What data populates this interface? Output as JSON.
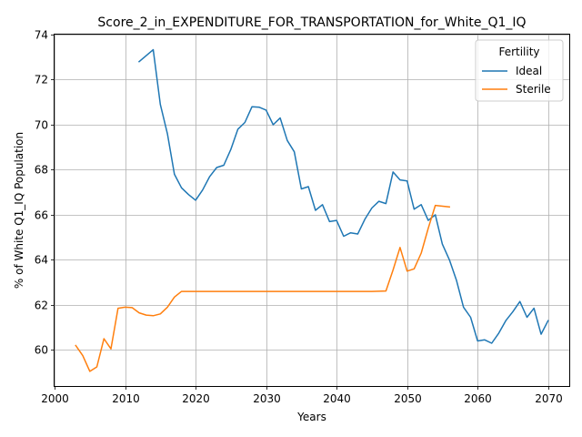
{
  "chart_data": {
    "type": "line",
    "title": "Score_2_in_EXPENDITURE_FOR_TRANSPORTATION_for_White_Q1_IQ",
    "xlabel": "Years",
    "ylabel": "% of White Q1_IQ Population",
    "xlim": [
      2000,
      2073
    ],
    "ylim": [
      58.4,
      74.0
    ],
    "xticks": [
      2000,
      2010,
      2020,
      2030,
      2040,
      2050,
      2060,
      2070
    ],
    "yticks": [
      60,
      62,
      64,
      66,
      68,
      70,
      72,
      74
    ],
    "grid": true,
    "legend": {
      "title": "Fertility",
      "position": "top-right"
    },
    "series": [
      {
        "name": "Ideal",
        "color": "#1f77b4",
        "x": [
          2012,
          2014,
          2015,
          2016,
          2017,
          2018,
          2019,
          2020,
          2021,
          2022,
          2023,
          2024,
          2025,
          2026,
          2027,
          2028,
          2029,
          2030,
          2031,
          2032,
          2033,
          2034,
          2035,
          2036,
          2037,
          2038,
          2039,
          2040,
          2041,
          2042,
          2043,
          2044,
          2045,
          2046,
          2047,
          2048,
          2049,
          2050,
          2051,
          2052,
          2053,
          2054,
          2055,
          2056,
          2057,
          2058,
          2059,
          2060,
          2061,
          2062,
          2063,
          2064,
          2065,
          2066,
          2067,
          2068,
          2069,
          2070
        ],
        "y": [
          72.8,
          73.33,
          70.9,
          69.6,
          67.8,
          67.2,
          66.9,
          66.65,
          67.1,
          67.7,
          68.1,
          68.2,
          68.9,
          69.8,
          70.1,
          70.8,
          70.78,
          70.65,
          70.0,
          70.3,
          69.3,
          68.8,
          67.15,
          67.25,
          66.2,
          66.45,
          65.7,
          65.75,
          65.05,
          65.2,
          65.15,
          65.8,
          66.3,
          66.6,
          66.5,
          67.9,
          67.55,
          67.5,
          66.25,
          66.45,
          65.75,
          66.0,
          64.7,
          64.0,
          63.1,
          61.9,
          61.45,
          60.4,
          60.45,
          60.3,
          60.75,
          61.3,
          61.7,
          62.15,
          61.45,
          61.85,
          60.7,
          61.3
        ]
      },
      {
        "name": "Sterile",
        "color": "#ff7f0e",
        "x": [
          2003,
          2004,
          2005,
          2006,
          2007,
          2008,
          2009,
          2010,
          2011,
          2012,
          2013,
          2014,
          2015,
          2016,
          2017,
          2018,
          2020,
          2025,
          2030,
          2035,
          2040,
          2045,
          2047,
          2048,
          2049,
          2050,
          2051,
          2052,
          2053,
          2054,
          2056
        ],
        "y": [
          60.2,
          59.75,
          59.05,
          59.25,
          60.5,
          60.05,
          61.85,
          61.9,
          61.88,
          61.65,
          61.55,
          61.52,
          61.6,
          61.9,
          62.35,
          62.6,
          62.6,
          62.6,
          62.6,
          62.6,
          62.6,
          62.6,
          62.62,
          63.55,
          64.55,
          63.5,
          63.6,
          64.3,
          65.4,
          66.42,
          66.35
        ]
      }
    ]
  }
}
